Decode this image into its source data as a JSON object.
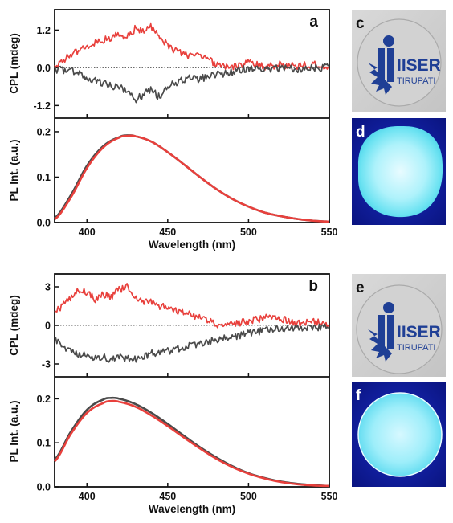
{
  "figure": {
    "colors": {
      "red": "#e8403c",
      "gray": "#4a4a4a",
      "frame": "#111111"
    },
    "panels": [
      {
        "letter": "a"
      },
      {
        "letter": "b"
      }
    ],
    "photos": [
      {
        "letter": "c",
        "kind": "logo-film",
        "logo_text": [
          "IISER",
          "TIRUPATI"
        ]
      },
      {
        "letter": "d",
        "kind": "fluorescent-film"
      },
      {
        "letter": "e",
        "kind": "logo-film",
        "logo_text": [
          "IISER",
          "TIRUPATI"
        ]
      },
      {
        "letter": "f",
        "kind": "fluorescent-film"
      }
    ]
  },
  "chart_data": [
    {
      "id": "a-cpl",
      "type": "line",
      "ylabel": "CPL (mdeg)",
      "xlim": [
        380,
        550
      ],
      "ylim": [
        -1.6,
        1.85
      ],
      "yticks": [
        -1.2,
        0.0,
        1.2
      ],
      "yticklabels": [
        "-1.2",
        "0.0",
        "1.2"
      ],
      "zero_line": true,
      "series": [
        {
          "color": "red",
          "x": [
            380,
            390,
            400,
            410,
            415,
            420,
            425,
            430,
            435,
            440,
            445,
            450,
            460,
            470,
            480,
            490,
            500,
            510,
            520,
            530,
            540,
            550
          ],
          "y": [
            0.05,
            0.4,
            0.7,
            0.9,
            0.95,
            1.05,
            1.0,
            1.25,
            1.15,
            1.3,
            1.0,
            0.7,
            0.4,
            0.35,
            0.15,
            0.0,
            0.15,
            0.05,
            0.1,
            0.05,
            0.1,
            0.05
          ]
        },
        {
          "color": "gray",
          "x": [
            380,
            390,
            400,
            410,
            415,
            420,
            425,
            430,
            435,
            440,
            445,
            450,
            460,
            470,
            480,
            490,
            500,
            510,
            520,
            530,
            540,
            550
          ],
          "y": [
            -0.05,
            -0.1,
            -0.3,
            -0.5,
            -0.6,
            -0.65,
            -0.7,
            -1.0,
            -0.85,
            -0.7,
            -0.95,
            -0.6,
            -0.35,
            -0.35,
            -0.2,
            -0.15,
            0.0,
            -0.05,
            0.0,
            -0.05,
            0.0,
            0.0
          ]
        }
      ]
    },
    {
      "id": "a-pl",
      "type": "line",
      "xlabel": "Wavelength (nm)",
      "ylabel": "PL Int. (a.u.)",
      "xlim": [
        380,
        550
      ],
      "ylim": [
        0.0,
        0.23
      ],
      "xticks": [
        400,
        450,
        500,
        550
      ],
      "xticklabels": [
        "400",
        "450",
        "500",
        "550"
      ],
      "yticks": [
        0.0,
        0.1,
        0.2
      ],
      "yticklabels": [
        "0.0",
        "0.1",
        "0.2"
      ],
      "series": [
        {
          "color": "gray",
          "x": [
            380,
            390,
            400,
            410,
            420,
            425,
            430,
            440,
            450,
            460,
            470,
            480,
            490,
            500,
            510,
            520,
            530,
            540,
            550
          ],
          "y": [
            0.01,
            0.06,
            0.125,
            0.168,
            0.188,
            0.192,
            0.19,
            0.178,
            0.155,
            0.128,
            0.1,
            0.074,
            0.052,
            0.035,
            0.022,
            0.014,
            0.008,
            0.004,
            0.002
          ]
        },
        {
          "color": "red",
          "x": [
            380,
            390,
            400,
            410,
            420,
            425,
            430,
            440,
            450,
            460,
            470,
            480,
            490,
            500,
            510,
            520,
            530,
            540,
            550
          ],
          "y": [
            0.007,
            0.055,
            0.12,
            0.165,
            0.187,
            0.191,
            0.19,
            0.178,
            0.155,
            0.128,
            0.1,
            0.074,
            0.052,
            0.035,
            0.022,
            0.014,
            0.008,
            0.004,
            0.002
          ]
        }
      ]
    },
    {
      "id": "b-cpl",
      "type": "line",
      "ylabel": "CPL (mdeg)",
      "xlim": [
        380,
        550
      ],
      "ylim": [
        -4.0,
        4.0
      ],
      "yticks": [
        -3,
        0,
        3
      ],
      "yticklabels": [
        "-3",
        "0",
        "3"
      ],
      "zero_line": true,
      "series": [
        {
          "color": "red",
          "x": [
            380,
            385,
            390,
            395,
            400,
            405,
            410,
            415,
            420,
            425,
            430,
            435,
            440,
            445,
            450,
            460,
            470,
            480,
            490,
            500,
            510,
            520,
            530,
            540,
            550
          ],
          "y": [
            1.0,
            1.5,
            2.2,
            2.8,
            2.6,
            2.0,
            2.4,
            2.2,
            2.8,
            3.0,
            2.2,
            1.9,
            1.9,
            1.5,
            1.4,
            1.0,
            0.6,
            0.1,
            0.1,
            0.3,
            0.6,
            0.5,
            0.1,
            0.3,
            0.0
          ]
        },
        {
          "color": "gray",
          "x": [
            380,
            385,
            390,
            395,
            400,
            405,
            410,
            415,
            420,
            425,
            430,
            435,
            440,
            445,
            450,
            460,
            470,
            480,
            490,
            500,
            510,
            520,
            530,
            540,
            550
          ],
          "y": [
            -1.1,
            -1.6,
            -2.0,
            -2.2,
            -2.3,
            -2.5,
            -2.4,
            -2.7,
            -2.5,
            -2.6,
            -2.6,
            -2.4,
            -2.2,
            -2.1,
            -2.0,
            -1.7,
            -1.4,
            -1.1,
            -0.9,
            -0.6,
            -0.4,
            -0.3,
            -0.2,
            -0.15,
            -0.1
          ]
        }
      ]
    },
    {
      "id": "b-pl",
      "type": "line",
      "xlabel": "Wavelength (nm)",
      "ylabel": "PL Int. (a.u.)",
      "xlim": [
        380,
        550
      ],
      "ylim": [
        0.0,
        0.25
      ],
      "xticks": [
        400,
        450,
        500,
        550
      ],
      "xticklabels": [
        "400",
        "450",
        "500",
        "550"
      ],
      "yticks": [
        0.0,
        0.1,
        0.2
      ],
      "yticklabels": [
        "0.0",
        "0.1",
        "0.2"
      ],
      "series": [
        {
          "color": "gray",
          "x": [
            380,
            390,
            400,
            410,
            415,
            420,
            430,
            440,
            450,
            460,
            470,
            480,
            490,
            500,
            510,
            520,
            530,
            540,
            550
          ],
          "y": [
            0.062,
            0.125,
            0.175,
            0.198,
            0.202,
            0.2,
            0.188,
            0.168,
            0.143,
            0.116,
            0.09,
            0.067,
            0.047,
            0.031,
            0.02,
            0.012,
            0.007,
            0.004,
            0.002
          ]
        },
        {
          "color": "red",
          "x": [
            380,
            390,
            400,
            410,
            415,
            420,
            430,
            440,
            450,
            460,
            470,
            480,
            490,
            500,
            510,
            520,
            530,
            540,
            550
          ],
          "y": [
            0.058,
            0.12,
            0.168,
            0.19,
            0.195,
            0.193,
            0.182,
            0.162,
            0.138,
            0.112,
            0.087,
            0.064,
            0.045,
            0.03,
            0.019,
            0.011,
            0.006,
            0.003,
            0.002
          ]
        }
      ]
    }
  ]
}
